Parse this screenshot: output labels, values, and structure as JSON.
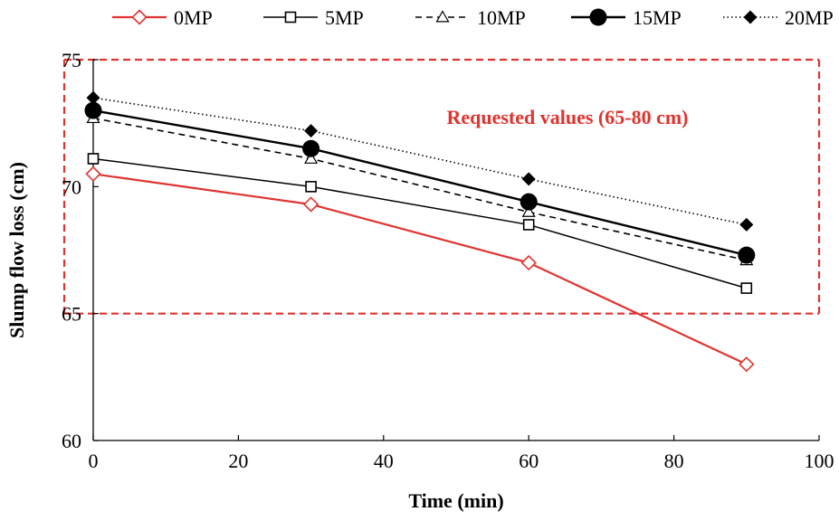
{
  "chart_data": {
    "type": "line",
    "xlabel": "Time (min)",
    "ylabel": "Slump flow loss  (cm)",
    "xlim": [
      0,
      100
    ],
    "ylim": [
      60,
      75
    ],
    "xticks": [
      0,
      20,
      40,
      60,
      80,
      100
    ],
    "yticks": [
      60,
      65,
      70,
      75
    ],
    "grid": false,
    "legend_position": "top",
    "annotation": "Requested values (65-80 cm)",
    "requested_range": [
      65,
      80
    ],
    "x": [
      0,
      30,
      60,
      90
    ],
    "series": [
      {
        "name": "0MP",
        "values": [
          70.5,
          69.3,
          67.0,
          63.0
        ],
        "color": "#e0342f",
        "marker": "open-diamond",
        "line": "solid"
      },
      {
        "name": "5MP",
        "values": [
          71.1,
          70.0,
          68.5,
          66.0
        ],
        "color": "#000000",
        "marker": "open-square",
        "line": "solid"
      },
      {
        "name": "10MP",
        "values": [
          72.7,
          71.1,
          69.0,
          67.1
        ],
        "color": "#000000",
        "marker": "open-triangle",
        "line": "dashed"
      },
      {
        "name": "15MP",
        "values": [
          73.0,
          71.5,
          69.4,
          67.3
        ],
        "color": "#000000",
        "marker": "filled-circle",
        "line": "solid-thick"
      },
      {
        "name": "20MP",
        "values": [
          73.5,
          72.2,
          70.3,
          68.5
        ],
        "color": "#000000",
        "marker": "filled-diamond",
        "line": "dotted"
      }
    ]
  }
}
